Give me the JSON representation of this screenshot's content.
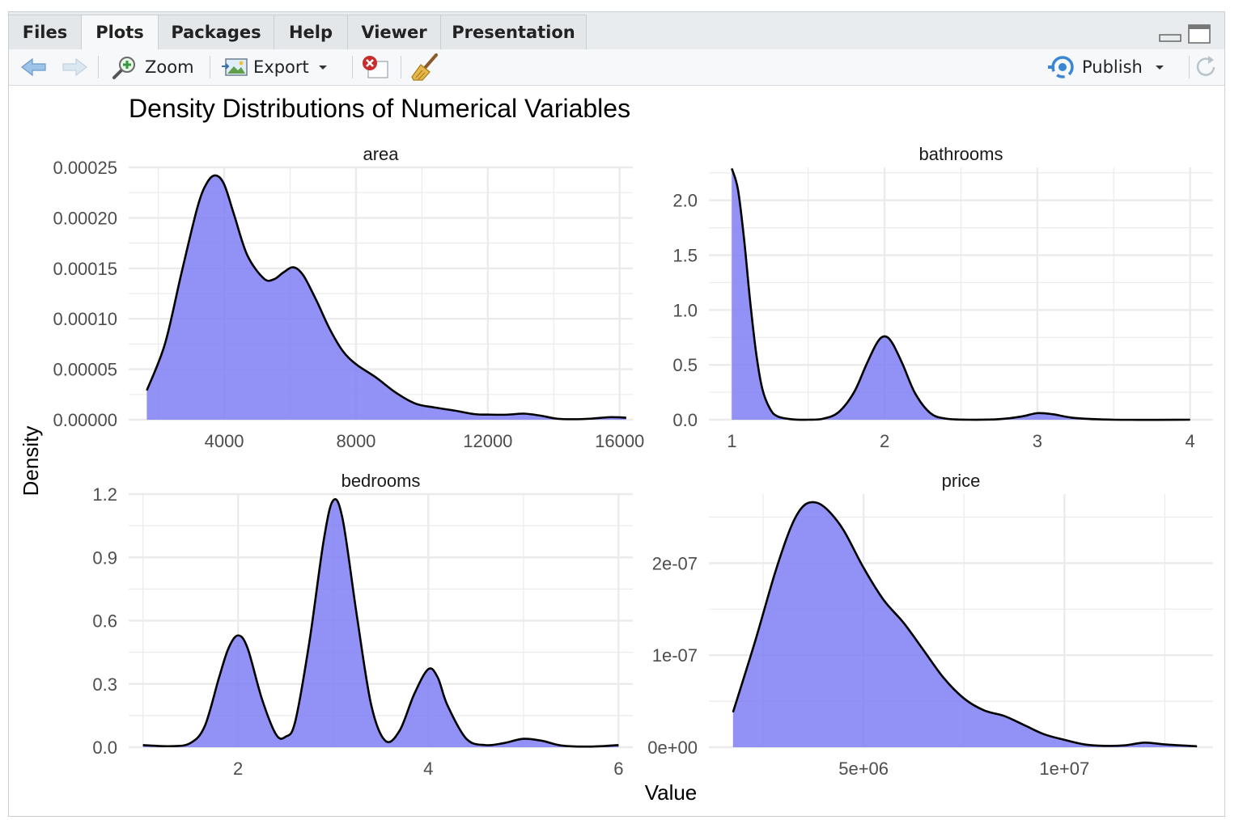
{
  "tabs": [
    "Files",
    "Plots",
    "Packages",
    "Help",
    "Viewer",
    "Presentation"
  ],
  "active_tab": "Plots",
  "toolbar": {
    "zoom_label": "Zoom",
    "export_label": "Export",
    "publish_label": "Publish"
  },
  "colors": {
    "fill": "#7f7ff5",
    "fill_opacity": 0.85,
    "line": "#000000",
    "grid": "#ebebeb",
    "publish_icon": "#3a86d4",
    "remove_icon": "#c62d2d"
  },
  "icons": [
    "back-arrow-icon",
    "forward-arrow-icon",
    "zoom-icon",
    "export-icon",
    "remove-plot-icon",
    "broom-icon",
    "publish-icon",
    "refresh-icon",
    "minimize-icon",
    "maximize-icon"
  ],
  "chart_data": {
    "type": "area",
    "title": "Density Distributions of Numerical Variables",
    "xlabel": "Value",
    "ylabel": "Density",
    "grid": true,
    "facets": [
      {
        "name": "area",
        "xlim": [
          1100,
          16400
        ],
        "ylim": [
          0,
          0.00025
        ],
        "xticks": [
          4000,
          8000,
          12000,
          16000
        ],
        "xtick_labels": [
          "4000",
          "8000",
          "12000",
          "16000"
        ],
        "yticks": [
          0,
          5e-05,
          0.0001,
          0.00015,
          0.0002,
          0.00025
        ],
        "ytick_labels": [
          "0.00000",
          "0.00005",
          "0.00010",
          "0.00015",
          "0.00020",
          "0.00025"
        ],
        "x": [
          1650,
          2200,
          2700,
          3200,
          3500,
          3750,
          4000,
          4300,
          4700,
          5200,
          5500,
          5800,
          6100,
          6400,
          6800,
          7200,
          7600,
          8000,
          8600,
          9200,
          9800,
          10400,
          11000,
          11600,
          12100,
          12600,
          13100,
          13600,
          14100,
          14600,
          15100,
          15700,
          16200
        ],
        "y": [
          2.9e-05,
          7.5e-05,
          0.000145,
          0.000212,
          0.000236,
          0.000242,
          0.000233,
          0.000203,
          0.000163,
          0.00014,
          0.000139,
          0.000146,
          0.000151,
          0.000143,
          0.000118,
          9e-05,
          6.8e-05,
          5.5e-05,
          4.2e-05,
          2.7e-05,
          1.6e-05,
          1.2e-05,
          9e-06,
          5.5e-06,
          5e-06,
          5e-06,
          6e-06,
          4e-06,
          1e-06,
          5e-07,
          1e-06,
          2.5e-06,
          2e-06
        ]
      },
      {
        "name": "bathrooms",
        "xlim": [
          0.85,
          4.15
        ],
        "ylim": [
          0,
          2.3
        ],
        "xticks": [
          1,
          2,
          3,
          4
        ],
        "xtick_labels": [
          "1",
          "2",
          "3",
          "4"
        ],
        "yticks": [
          0,
          0.5,
          1.0,
          1.5,
          2.0
        ],
        "ytick_labels": [
          "0.0",
          "0.5",
          "1.0",
          "1.5",
          "2.0"
        ],
        "x": [
          1.0,
          1.04,
          1.08,
          1.12,
          1.16,
          1.2,
          1.25,
          1.3,
          1.4,
          1.5,
          1.6,
          1.7,
          1.8,
          1.88,
          1.95,
          2.0,
          2.05,
          2.12,
          2.2,
          2.3,
          2.4,
          2.55,
          2.75,
          2.9,
          3.0,
          3.1,
          3.25,
          3.5,
          4.0
        ],
        "y": [
          2.29,
          2.1,
          1.65,
          1.08,
          0.6,
          0.28,
          0.1,
          0.03,
          0.003,
          0.0,
          0.01,
          0.07,
          0.25,
          0.5,
          0.7,
          0.76,
          0.7,
          0.5,
          0.24,
          0.06,
          0.01,
          0.0,
          0.005,
          0.03,
          0.06,
          0.05,
          0.015,
          0.0,
          0.0
        ]
      },
      {
        "name": "bedrooms",
        "xlim": [
          0.85,
          6.15
        ],
        "ylim": [
          0,
          1.2
        ],
        "xticks": [
          2,
          4,
          6
        ],
        "xtick_labels": [
          "2",
          "4",
          "6"
        ],
        "yticks": [
          0,
          0.3,
          0.6,
          0.9,
          1.2
        ],
        "ytick_labels": [
          "0.0",
          "0.3",
          "0.6",
          "0.9",
          "1.2"
        ],
        "x": [
          1.0,
          1.3,
          1.5,
          1.65,
          1.8,
          1.9,
          2.0,
          2.1,
          2.25,
          2.4,
          2.5,
          2.6,
          2.75,
          2.9,
          3.0,
          3.1,
          3.25,
          3.4,
          3.55,
          3.7,
          3.85,
          4.0,
          4.1,
          4.2,
          4.4,
          4.6,
          4.8,
          5.0,
          5.2,
          5.4,
          5.7,
          6.0
        ],
        "y": [
          0.01,
          0.005,
          0.02,
          0.1,
          0.33,
          0.47,
          0.53,
          0.47,
          0.23,
          0.06,
          0.05,
          0.12,
          0.5,
          0.98,
          1.17,
          1.08,
          0.62,
          0.2,
          0.03,
          0.08,
          0.25,
          0.37,
          0.33,
          0.2,
          0.04,
          0.01,
          0.02,
          0.04,
          0.03,
          0.008,
          0.003,
          0.01
        ]
      },
      {
        "name": "price",
        "xlim": [
          1150000,
          13700000
        ],
        "ylim": [
          0,
          2.75e-07
        ],
        "xticks": [
          5000000,
          10000000
        ],
        "xtick_labels": [
          "5e+06",
          "1e+07"
        ],
        "yticks": [
          0,
          1e-07,
          2e-07
        ],
        "ytick_labels": [
          "0e+00",
          "1e-07",
          "2e-07"
        ],
        "x": [
          1750000,
          2300000,
          2800000,
          3200000,
          3500000,
          3800000,
          4100000,
          4500000,
          5000000,
          5500000,
          6000000,
          6500000,
          7000000,
          7500000,
          8000000,
          8500000,
          9000000,
          9500000,
          10000000,
          10500000,
          11000000,
          11500000,
          12000000,
          12500000,
          13300000
        ],
        "y": [
          3.8e-08,
          1.15e-07,
          1.9e-07,
          2.4e-07,
          2.62e-07,
          2.66e-07,
          2.58e-07,
          2.36e-07,
          1.95e-07,
          1.6e-07,
          1.35e-07,
          1.05e-07,
          7.5e-08,
          5.3e-08,
          4e-08,
          3.4e-08,
          2.4e-08,
          1.4e-08,
          8e-09,
          3e-09,
          1.5e-09,
          2e-09,
          5e-09,
          3e-09,
          1e-09
        ]
      }
    ]
  }
}
